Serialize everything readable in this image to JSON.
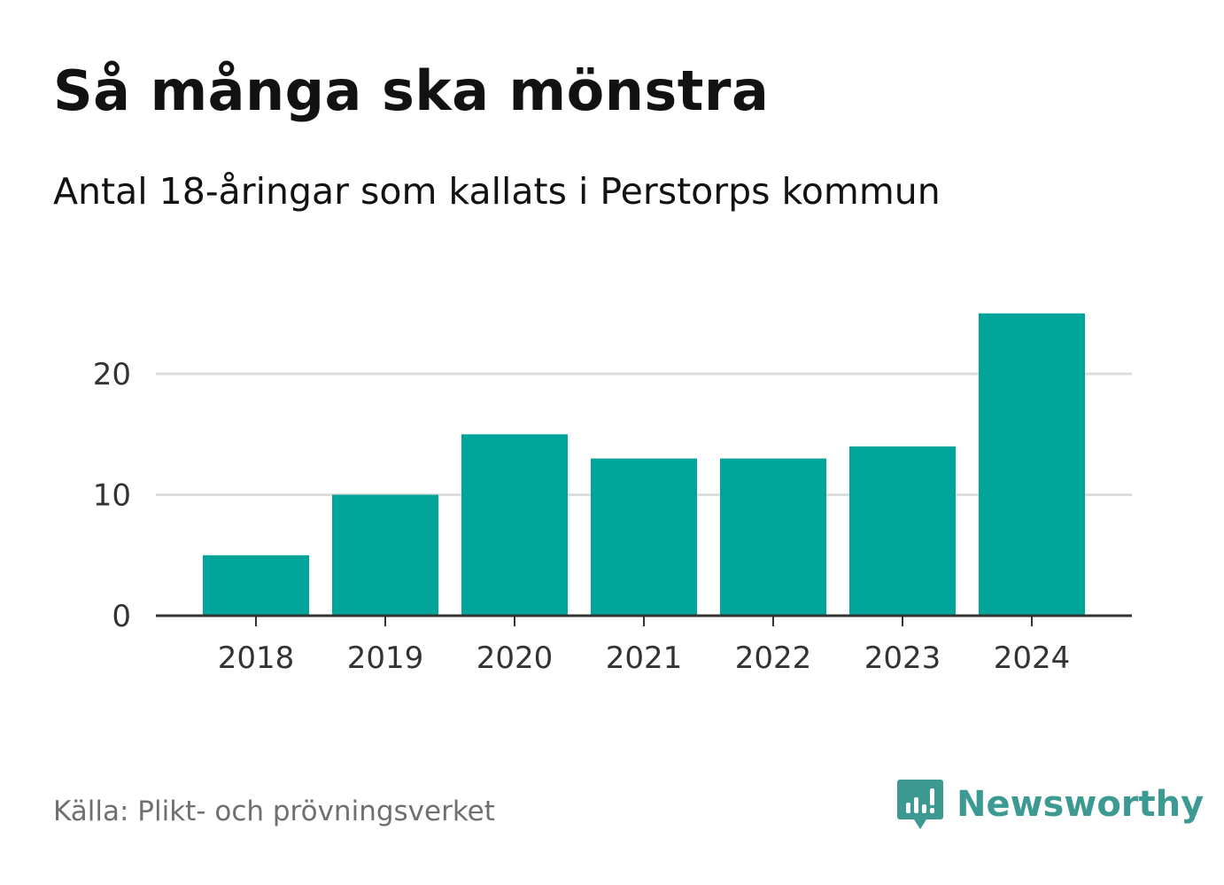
{
  "title": "Så många ska mönstra",
  "subtitle": "Antal 18-åringar som kallats i Perstorps kommun",
  "source": "Källa: Plikt- och prövningsverket",
  "brand": {
    "name": "Newsworthy",
    "icon": "newsworthy-logo-icon",
    "color": "#3d9a93"
  },
  "colors": {
    "bar": "#00a499",
    "grid": "#dddddd",
    "axis": "#333333"
  },
  "chart_data": {
    "type": "bar",
    "categories": [
      "2018",
      "2019",
      "2020",
      "2021",
      "2022",
      "2023",
      "2024"
    ],
    "values": [
      5,
      10,
      15,
      13,
      13,
      14,
      25
    ],
    "yticks": [
      0,
      10,
      20
    ],
    "ylim": [
      0,
      25
    ],
    "grid": true,
    "xlabel": "",
    "ylabel": ""
  }
}
